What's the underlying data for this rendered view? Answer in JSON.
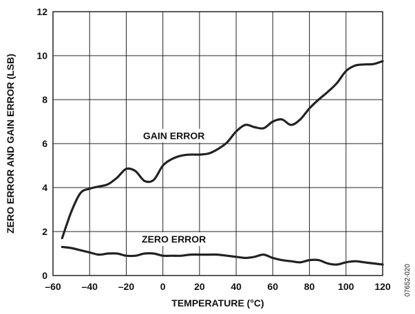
{
  "chart_data": {
    "type": "line",
    "title": "",
    "xlabel": "TEMPERATURE (°C)",
    "ylabel": "ZERO ERROR AND GAIN ERROR (LSB)",
    "xlim": [
      -60,
      120
    ],
    "ylim": [
      0,
      12
    ],
    "xticks": [
      -60,
      -40,
      -20,
      0,
      20,
      40,
      60,
      80,
      100,
      120
    ],
    "xtick_labels": [
      "–60",
      "–40",
      "–20",
      "0",
      "20",
      "40",
      "60",
      "80",
      "100",
      "120"
    ],
    "yticks": [
      0,
      2,
      4,
      6,
      8,
      10,
      12
    ],
    "ytick_labels": [
      "0",
      "2",
      "4",
      "6",
      "8",
      "10",
      "12"
    ],
    "grid": true,
    "series": [
      {
        "name": "GAIN ERROR",
        "x": [
          -55,
          -50,
          -45,
          -40,
          -35,
          -30,
          -25,
          -20,
          -15,
          -10,
          -5,
          0,
          5,
          10,
          15,
          20,
          25,
          30,
          35,
          40,
          45,
          50,
          55,
          60,
          65,
          70,
          75,
          80,
          85,
          90,
          95,
          100,
          105,
          110,
          115,
          120
        ],
        "y": [
          1.7,
          2.9,
          3.75,
          3.95,
          4.05,
          4.15,
          4.45,
          4.85,
          4.75,
          4.3,
          4.35,
          5.0,
          5.3,
          5.45,
          5.5,
          5.5,
          5.55,
          5.75,
          6.05,
          6.55,
          6.85,
          6.75,
          6.7,
          7.0,
          7.1,
          6.85,
          7.1,
          7.6,
          8.0,
          8.35,
          8.75,
          9.3,
          9.55,
          9.6,
          9.62,
          9.75
        ]
      },
      {
        "name": "ZERO ERROR",
        "x": [
          -55,
          -50,
          -45,
          -40,
          -35,
          -30,
          -25,
          -20,
          -15,
          -10,
          -5,
          0,
          5,
          10,
          15,
          20,
          25,
          30,
          35,
          40,
          45,
          50,
          55,
          60,
          65,
          70,
          75,
          80,
          85,
          90,
          95,
          100,
          105,
          110,
          115,
          120
        ],
        "y": [
          1.3,
          1.25,
          1.15,
          1.05,
          0.95,
          1.0,
          1.0,
          0.9,
          0.9,
          1.0,
          1.0,
          0.9,
          0.9,
          0.9,
          0.95,
          0.95,
          0.95,
          0.95,
          0.9,
          0.85,
          0.8,
          0.85,
          0.95,
          0.8,
          0.7,
          0.65,
          0.6,
          0.7,
          0.7,
          0.55,
          0.5,
          0.6,
          0.65,
          0.6,
          0.55,
          0.5
        ]
      }
    ],
    "annotations": [
      {
        "text": "GAIN ERROR",
        "x": 6,
        "y": 6.2
      },
      {
        "text": "ZERO ERROR",
        "x": 6,
        "y": 1.5
      }
    ],
    "figure_id": "07652-020"
  }
}
